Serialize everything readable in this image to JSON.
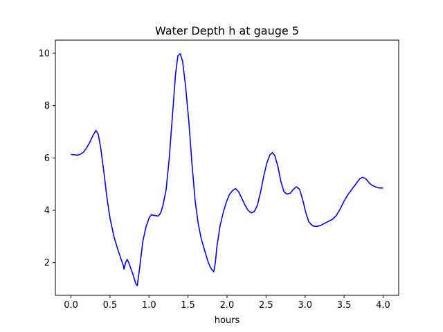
{
  "chart_data": {
    "type": "line",
    "title": "Water Depth h at gauge 5",
    "xlabel": "hours",
    "ylabel": "",
    "xlim": [
      -0.2,
      4.2
    ],
    "ylim": [
      0.75,
      10.5
    ],
    "xticks": [
      0.0,
      0.5,
      1.0,
      1.5,
      2.0,
      2.5,
      3.0,
      3.5,
      4.0
    ],
    "xtick_labels": [
      "0.0",
      "0.5",
      "1.0",
      "1.5",
      "2.0",
      "2.5",
      "3.0",
      "3.5",
      "4.0"
    ],
    "yticks": [
      2,
      4,
      6,
      8,
      10
    ],
    "ytick_labels": [
      "2",
      "4",
      "6",
      "8",
      "10"
    ],
    "grid": false,
    "series": [
      {
        "color": "#0000ff",
        "points": [
          [
            0.0,
            6.13
          ],
          [
            0.05,
            6.12
          ],
          [
            0.08,
            6.1
          ],
          [
            0.12,
            6.14
          ],
          [
            0.16,
            6.22
          ],
          [
            0.2,
            6.38
          ],
          [
            0.25,
            6.65
          ],
          [
            0.28,
            6.85
          ],
          [
            0.32,
            7.05
          ],
          [
            0.35,
            6.9
          ],
          [
            0.38,
            6.4
          ],
          [
            0.42,
            5.5
          ],
          [
            0.46,
            4.5
          ],
          [
            0.5,
            3.7
          ],
          [
            0.55,
            3.0
          ],
          [
            0.6,
            2.5
          ],
          [
            0.64,
            2.15
          ],
          [
            0.67,
            1.9
          ],
          [
            0.68,
            1.75
          ],
          [
            0.7,
            2.0
          ],
          [
            0.72,
            2.12
          ],
          [
            0.74,
            2.0
          ],
          [
            0.77,
            1.75
          ],
          [
            0.8,
            1.5
          ],
          [
            0.83,
            1.2
          ],
          [
            0.85,
            1.12
          ],
          [
            0.88,
            1.8
          ],
          [
            0.92,
            2.8
          ],
          [
            0.96,
            3.35
          ],
          [
            1.0,
            3.7
          ],
          [
            1.03,
            3.83
          ],
          [
            1.07,
            3.8
          ],
          [
            1.12,
            3.78
          ],
          [
            1.15,
            3.9
          ],
          [
            1.18,
            4.2
          ],
          [
            1.22,
            4.8
          ],
          [
            1.26,
            6.0
          ],
          [
            1.3,
            7.6
          ],
          [
            1.34,
            9.2
          ],
          [
            1.37,
            9.9
          ],
          [
            1.4,
            9.98
          ],
          [
            1.43,
            9.7
          ],
          [
            1.47,
            8.7
          ],
          [
            1.51,
            7.4
          ],
          [
            1.55,
            5.8
          ],
          [
            1.59,
            4.4
          ],
          [
            1.63,
            3.5
          ],
          [
            1.67,
            2.9
          ],
          [
            1.72,
            2.4
          ],
          [
            1.76,
            2.0
          ],
          [
            1.8,
            1.75
          ],
          [
            1.83,
            1.65
          ],
          [
            1.85,
            2.0
          ],
          [
            1.87,
            2.6
          ],
          [
            1.91,
            3.4
          ],
          [
            1.95,
            3.9
          ],
          [
            1.99,
            4.3
          ],
          [
            2.03,
            4.6
          ],
          [
            2.07,
            4.75
          ],
          [
            2.11,
            4.83
          ],
          [
            2.15,
            4.7
          ],
          [
            2.19,
            4.45
          ],
          [
            2.23,
            4.2
          ],
          [
            2.27,
            4.0
          ],
          [
            2.31,
            3.9
          ],
          [
            2.35,
            3.95
          ],
          [
            2.39,
            4.2
          ],
          [
            2.43,
            4.7
          ],
          [
            2.47,
            5.3
          ],
          [
            2.51,
            5.8
          ],
          [
            2.55,
            6.12
          ],
          [
            2.58,
            6.2
          ],
          [
            2.61,
            6.1
          ],
          [
            2.65,
            5.7
          ],
          [
            2.69,
            5.1
          ],
          [
            2.73,
            4.7
          ],
          [
            2.77,
            4.62
          ],
          [
            2.81,
            4.65
          ],
          [
            2.85,
            4.8
          ],
          [
            2.89,
            4.9
          ],
          [
            2.93,
            4.8
          ],
          [
            2.97,
            4.4
          ],
          [
            3.01,
            3.9
          ],
          [
            3.05,
            3.55
          ],
          [
            3.1,
            3.4
          ],
          [
            3.15,
            3.38
          ],
          [
            3.2,
            3.42
          ],
          [
            3.25,
            3.5
          ],
          [
            3.3,
            3.58
          ],
          [
            3.35,
            3.65
          ],
          [
            3.4,
            3.8
          ],
          [
            3.45,
            4.05
          ],
          [
            3.5,
            4.35
          ],
          [
            3.55,
            4.6
          ],
          [
            3.6,
            4.8
          ],
          [
            3.65,
            5.0
          ],
          [
            3.7,
            5.2
          ],
          [
            3.74,
            5.26
          ],
          [
            3.78,
            5.2
          ],
          [
            3.82,
            5.05
          ],
          [
            3.86,
            4.95
          ],
          [
            3.9,
            4.9
          ],
          [
            3.95,
            4.85
          ],
          [
            4.0,
            4.85
          ]
        ]
      }
    ]
  }
}
